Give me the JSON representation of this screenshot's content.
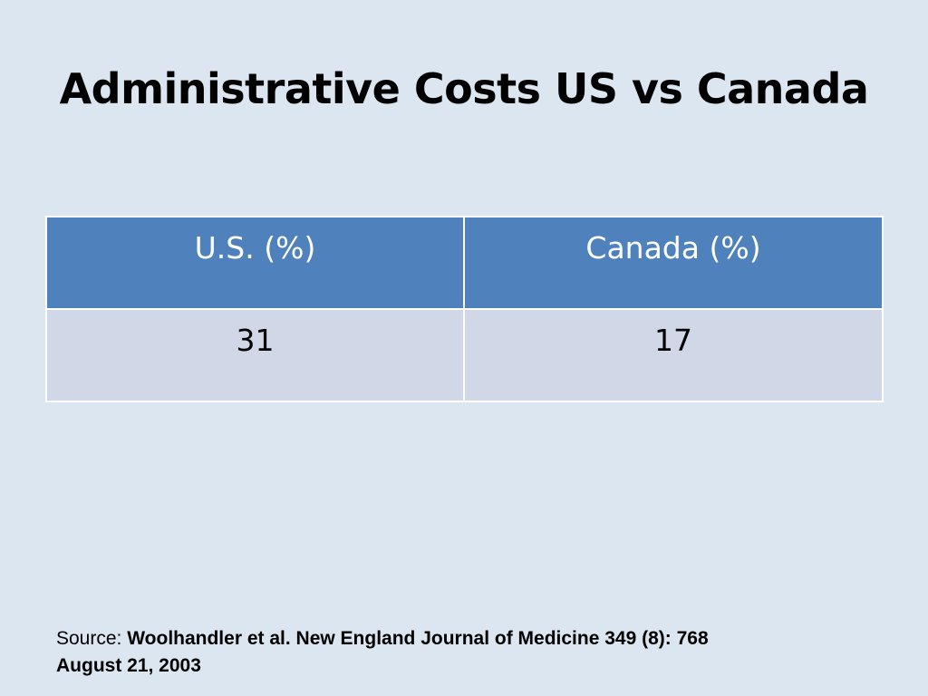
{
  "slide": {
    "title": "Administrative Costs US vs Canada",
    "table": {
      "headers": [
        "U.S. (%)",
        "Canada (%)"
      ],
      "rows": [
        [
          "31",
          "17"
        ]
      ]
    },
    "source": {
      "label": "Source:",
      "citation_line1": "Woolhandler et al. New England Journal of Medicine 349 (8): 768",
      "citation_line2": "August 21, 2003"
    }
  },
  "colors": {
    "background": "#dce6f1",
    "header_fill": "#4f81bd",
    "body_fill": "#d0d8e8",
    "cell_border": "#ffffff"
  }
}
